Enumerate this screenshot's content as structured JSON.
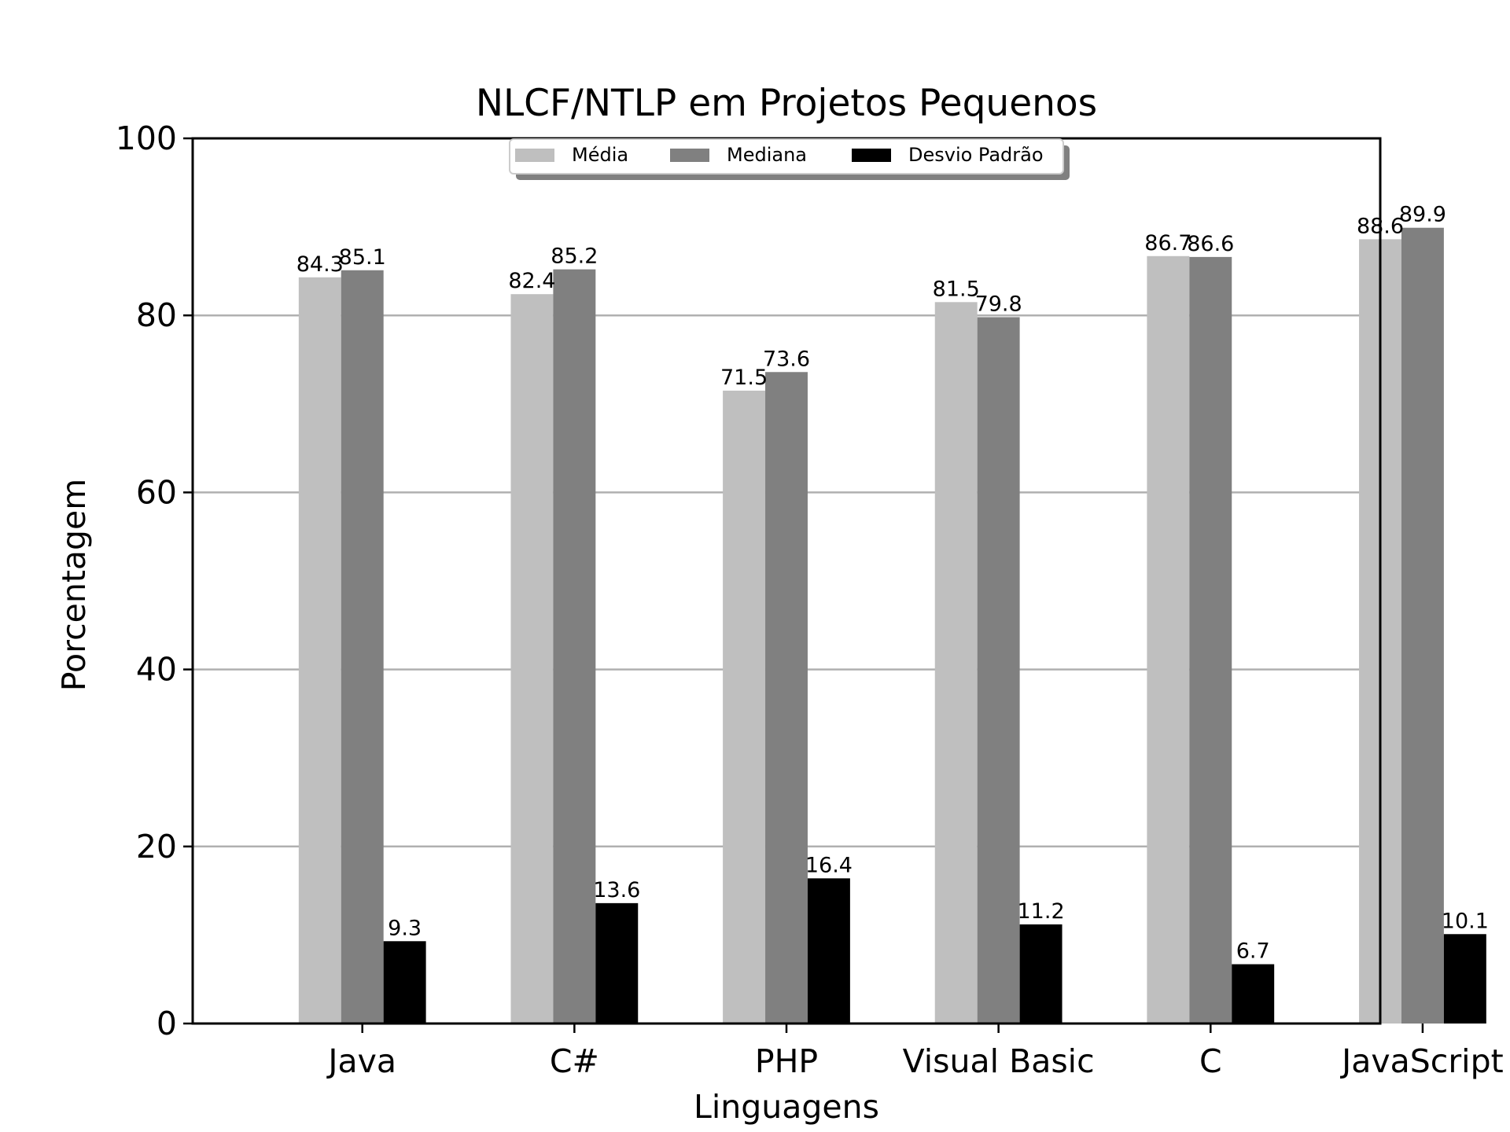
{
  "chart_data": {
    "type": "bar",
    "title": "NLCF/NTLP em Projetos Pequenos",
    "xlabel": "Linguagens",
    "ylabel": "Porcentagem",
    "categories": [
      "Java",
      "C#",
      "PHP",
      "Visual Basic",
      "C",
      "JavaScript"
    ],
    "series": [
      {
        "name": "Média",
        "color": "#bfbfbf",
        "values": [
          84.3,
          82.4,
          71.5,
          81.5,
          86.7,
          88.6
        ]
      },
      {
        "name": "Mediana",
        "color": "#808080",
        "values": [
          85.1,
          85.2,
          73.6,
          79.8,
          86.6,
          89.9
        ]
      },
      {
        "name": "Desvio Padrão",
        "color": "#000000",
        "values": [
          9.3,
          13.6,
          16.4,
          11.2,
          6.7,
          10.1
        ]
      }
    ],
    "ylim": [
      0,
      100
    ],
    "yticks": [
      0,
      20,
      40,
      60,
      80,
      100
    ],
    "grid": "horizontal",
    "legend_position": "top-center"
  }
}
